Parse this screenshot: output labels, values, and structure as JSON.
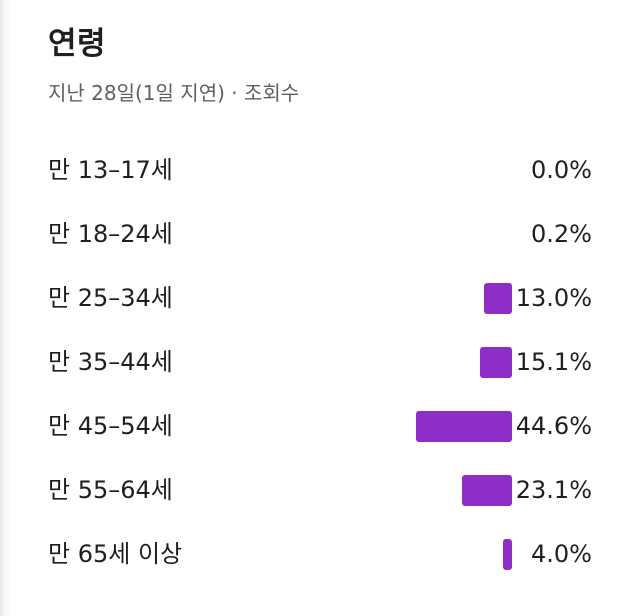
{
  "title": "연령",
  "subtitle": "지난 28일(1일 지연) · 조회수",
  "colors": {
    "bar": "#8e2ec7"
  },
  "chart_data": {
    "type": "bar",
    "orientation": "horizontal",
    "categories": [
      "만 13–17세",
      "만 18–24세",
      "만 25–34세",
      "만 35–44세",
      "만 45–54세",
      "만 55–64세",
      "만 65세 이상"
    ],
    "values": [
      0.0,
      0.2,
      13.0,
      15.1,
      44.6,
      23.1,
      4.0
    ],
    "value_labels": [
      "0.0%",
      "0.2%",
      "13.0%",
      "15.1%",
      "44.6%",
      "23.1%",
      "4.0%"
    ],
    "unit": "%",
    "xlim": [
      0,
      44.6
    ],
    "grid": false,
    "legend": "none"
  }
}
